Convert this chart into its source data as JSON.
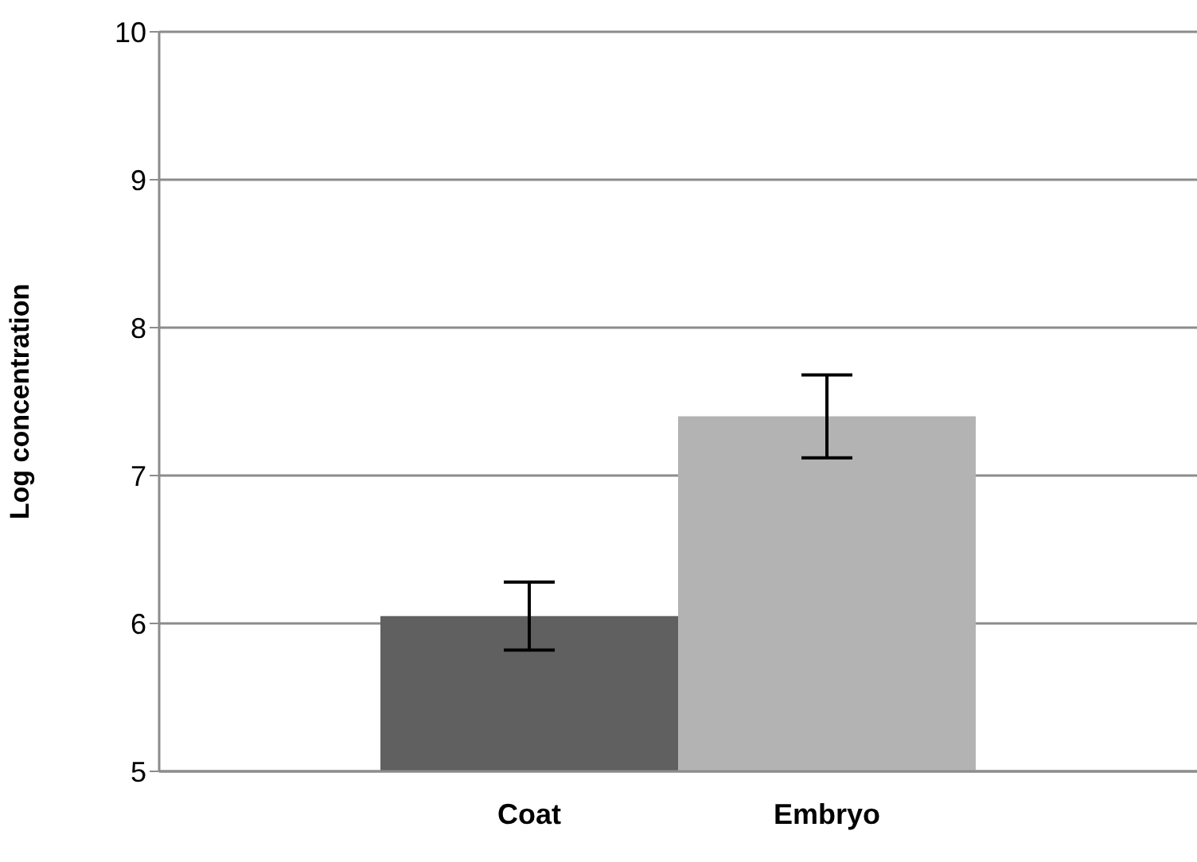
{
  "chart_data": {
    "type": "bar",
    "ylabel": "Log concentration",
    "categories": [
      "Coat",
      "Embryo"
    ],
    "values": [
      6.05,
      7.4
    ],
    "colors": [
      "#606060",
      "#b3b3b3"
    ],
    "errors": [
      0.23,
      0.28
    ],
    "ylim": [
      5,
      10
    ],
    "yticks": [
      5,
      6,
      7,
      8,
      9,
      10
    ],
    "grid": "y"
  }
}
